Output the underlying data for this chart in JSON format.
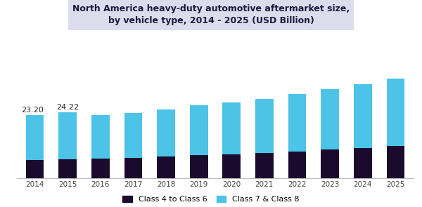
{
  "years": [
    "2014",
    "2015",
    "2016",
    "2017",
    "2018",
    "2019",
    "2020",
    "2021",
    "2022",
    "2023",
    "2024",
    "2025"
  ],
  "class_4_6": [
    6.5,
    7.0,
    7.2,
    7.4,
    7.9,
    8.4,
    8.8,
    9.2,
    9.8,
    10.4,
    11.0,
    11.7
  ],
  "class_7_8": [
    16.7,
    17.22,
    15.8,
    16.6,
    17.3,
    18.4,
    19.0,
    19.8,
    21.0,
    22.2,
    23.5,
    24.8
  ],
  "color_class_4_6": "#1a0a2e",
  "color_class_7_8": "#4dc3e8",
  "label_class_4_6": "Class 4 to Class 6",
  "label_class_7_8": "Class 7 & Class 8",
  "title_line1": "North America heavy-duty automotive aftermarket size,",
  "title_line2": "by vehicle type, 2014 - 2025 (USD Billion)",
  "annotation_2014": "23.20",
  "annotation_2015": "24.22",
  "ylim": [
    0,
    38
  ],
  "bar_width": 0.55,
  "title_bg_color": "#dcdcec",
  "chart_bg_color": "#ffffff",
  "title_color": "#1a1a3e",
  "tick_color": "#444444"
}
